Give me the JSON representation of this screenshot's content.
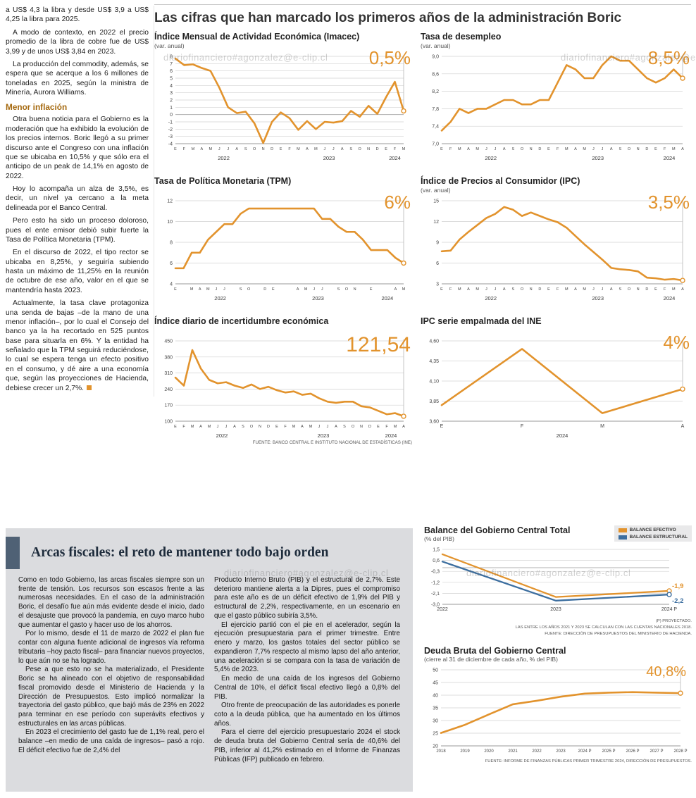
{
  "page": {
    "watermark": "diariofinanciero#agonzalez@e-clip.cl"
  },
  "left_column": {
    "intro": [
      "a US$ 4,3 la libra y desde US$ 3,9 a US$ 4,25 la libra para 2025.",
      "A modo de contexto, en 2022 el precio promedio de la libra de cobre fue de US$ 3,99 y de unos US$ 3,84 en 2023.",
      "La producción del commodity, además, se espera que se acerque a los 6 millones de toneladas en 2025, según la ministra de Minería, Aurora Williams."
    ],
    "subhead": "Menor inflación",
    "body": [
      "Otra buena noticia para el Gobierno es la moderación que ha exhibido la evolución de los precios internos. Boric llegó a su primer discurso ante el Congreso con una inflación que se ubicaba en 10,5% y que sólo era el anticipo de un peak de 14,1% en agosto de 2022.",
      "Hoy lo acompaña un alza de 3,5%, es decir, un nivel ya cercano a la meta delineada por el Banco Central.",
      "Pero esto ha sido un proceso doloroso, pues el ente emisor debió subir fuerte la Tasa de Política Monetaria (TPM).",
      "En el discurso de 2022, el tipo rector se ubicaba en 8,25%, y seguiría subiendo hasta un máximo de 11,25% en la reunión de octubre de ese año, valor en el que se mantendría hasta 2023.",
      "Actualmente, la tasa clave protagoniza una senda de bajas –de la mano de una menor inflación–, por lo cual el Consejo del banco ya la ha recortado en 525 puntos base para situarla en 6%. Y la entidad ha señalado que la TPM seguirá reduciéndose, lo cual se espera tenga un efecto positivo en el consumo, y dé aire a una economía que, según las proyecciones de Hacienda, debiese crecer un 2,7%."
    ]
  },
  "main": {
    "title": "Las cifras que han marcado los primeros años de la administración Boric"
  },
  "bottom": {
    "title": "Arcas fiscales: el reto de mantener todo bajo orden",
    "col1": [
      "Como en todo Gobierno, las arcas fiscales siempre son un frente de tensión. Los recursos son escasos frente a las numerosas necesidades. En el caso de la administración Boric, el desafío fue aún más evidente desde el inicio, dado el desajuste que provocó la pandemia, en cuyo marco hubo que aumentar el gasto y hacer uso de los ahorros.",
      "Por lo mismo, desde el 11 de marzo de 2022 el plan fue contar con alguna fuente adicional de ingresos vía reforma tributaria –hoy pacto fiscal– para financiar nuevos proyectos, lo que aún no se ha logrado.",
      "Pese a que esto no se ha materializado, el Presidente Boric se ha alineado con el objetivo de responsabilidad fiscal promovido desde el Ministerio de Hacienda y la Dirección de Presupuestos. Esto implicó normalizar la trayectoria del gasto público, que bajó más de 23% en 2022 para terminar en ese período con superávits efectivos y estructurales en las arcas públicas.",
      "En 2023 el crecimiento del gasto fue de 1,1% real, pero el balance –en medio de una caída de ingresos– pasó a rojo. El déficit efectivo fue de 2,4% del"
    ],
    "col2": [
      "Producto Interno Bruto (PIB) y el estructural de 2,7%. Este deterioro mantiene alerta a la Dipres, pues el compromiso para este año es de un déficit efectivo de 1,9% del PIB y estructural de 2,2%, respectivamente, en un escenario en que el gasto público subiría 3,5%.",
      "El ejercicio partió con el pie en el acelerador, según la ejecución presupuestaria para el primer trimestre. Entre enero y marzo, los gastos totales del sector público se expandieron 7,7% respecto al mismo lapso del año anterior, una aceleración si se compara con la tasa de variación de 5,4% de 2023.",
      "En medio de una caída de los ingresos del Gobierno Central de 10%, el déficit fiscal efectivo llegó a 0,8% del PIB.",
      "Otro frente de preocupación de las autoridades es ponerle coto a la deuda pública, que ha aumentado en los últimos años.",
      "Para el cierre del ejercicio presupuestario 2024 el stock de deuda bruta del Gobierno Central sería de 40,6% del PIB, inferior al 41,2% estimado en el Informe de Finanzas Públicas (IFP) publicado en febrero."
    ]
  },
  "colors": {
    "orange": "#E2932D",
    "blue": "#3C6E9F"
  },
  "chart_data": [
    {
      "id": "imacec",
      "type": "line",
      "title": "Índice Mensual de Actividad Económica (Imacec)",
      "subtitle": "(var. anual)",
      "big_label": "0,5%",
      "ylim": [
        -4,
        8
      ],
      "y_ticks": [
        8,
        7,
        6,
        5,
        4,
        3,
        2,
        1,
        0,
        -1,
        -2,
        -3,
        -4
      ],
      "x_labels": [
        "E",
        "F",
        "M",
        "A",
        "M",
        "J",
        "J",
        "A",
        "S",
        "O",
        "N",
        "D",
        "E",
        "F",
        "M",
        "A",
        "M",
        "J",
        "J",
        "A",
        "S",
        "O",
        "N",
        "D",
        "E",
        "F",
        "M"
      ],
      "years": [
        {
          "label": "2022",
          "from": 0,
          "to": 11
        },
        {
          "label": "2023",
          "from": 12,
          "to": 23
        },
        {
          "label": "2024",
          "from": 24,
          "to": 26
        }
      ],
      "guide": true,
      "series": [
        {
          "name": "Imacec",
          "color": "#E2932D",
          "end_dot": true,
          "values": [
            7.7,
            6.8,
            6.9,
            6.4,
            6.0,
            3.7,
            1.0,
            0.2,
            0.4,
            -1.2,
            -3.9,
            -1.0,
            0.3,
            -0.5,
            -2.1,
            -0.9,
            -2.0,
            -1.0,
            -1.1,
            -0.9,
            0.5,
            -0.3,
            1.2,
            0.1,
            2.4,
            4.5,
            0.5
          ]
        }
      ]
    },
    {
      "id": "desempleo",
      "type": "line",
      "title": "Tasa de desempleo",
      "subtitle": "(var. anual)",
      "big_label": "8,5%",
      "ylim": [
        7.0,
        9.0
      ],
      "y_ticks": [
        9.0,
        8.6,
        8.2,
        7.8,
        7.4,
        7.0
      ],
      "y_tick_labels": [
        "9,0",
        "8,6",
        "8,2",
        "7,8",
        "7,4",
        "7,0"
      ],
      "x_labels": [
        "E",
        "F",
        "M",
        "A",
        "M",
        "J",
        "J",
        "A",
        "S",
        "O",
        "N",
        "D",
        "E",
        "F",
        "M",
        "A",
        "M",
        "J",
        "J",
        "A",
        "S",
        "O",
        "N",
        "D",
        "E",
        "F",
        "M",
        "A"
      ],
      "years": [
        {
          "label": "2022",
          "from": 0,
          "to": 11
        },
        {
          "label": "2023",
          "from": 12,
          "to": 23
        },
        {
          "label": "2024",
          "from": 24,
          "to": 27
        }
      ],
      "guide": true,
      "series": [
        {
          "name": "Tasa de desempleo",
          "color": "#E2932D",
          "end_dot": true,
          "values": [
            7.3,
            7.5,
            7.8,
            7.7,
            7.8,
            7.8,
            7.9,
            8.0,
            8.0,
            7.9,
            7.9,
            8.0,
            8.0,
            8.4,
            8.8,
            8.7,
            8.5,
            8.5,
            8.8,
            9.0,
            8.9,
            8.9,
            8.7,
            8.5,
            8.4,
            8.5,
            8.7,
            8.5
          ]
        }
      ]
    },
    {
      "id": "tpm",
      "type": "line",
      "title": "Tasa de Política Monetaria (TPM)",
      "subtitle": "",
      "big_label": "6%",
      "ylim": [
        4,
        12
      ],
      "y_ticks": [
        12,
        10,
        8,
        6,
        4
      ],
      "x_labels": [
        "E",
        "",
        "M",
        "A",
        "M",
        "J",
        "J",
        "",
        "S",
        "O",
        "",
        "D",
        "E",
        "",
        "",
        "A",
        "M",
        "J",
        "J",
        "",
        "S",
        "O",
        "N",
        "",
        "E",
        "",
        "",
        "A",
        "M"
      ],
      "years": [
        {
          "label": "2022",
          "from": 0,
          "to": 11
        },
        {
          "label": "2023",
          "from": 12,
          "to": 23
        },
        {
          "label": "2024",
          "from": 24,
          "to": 28
        }
      ],
      "guide": true,
      "series": [
        {
          "name": "TPM",
          "color": "#E2932D",
          "end_dot": true,
          "values": [
            5.5,
            5.5,
            7.0,
            7.0,
            8.25,
            9.0,
            9.75,
            9.75,
            10.75,
            11.25,
            11.25,
            11.25,
            11.25,
            11.25,
            11.25,
            11.25,
            11.25,
            11.25,
            10.25,
            10.25,
            9.5,
            9.0,
            9.0,
            8.25,
            7.25,
            7.25,
            7.25,
            6.5,
            6.0
          ]
        }
      ]
    },
    {
      "id": "ipc",
      "type": "line",
      "title": "Índice de Precios al Consumidor (IPC)",
      "subtitle": "(var. anual)",
      "big_label": "3,5%",
      "ylim": [
        3,
        15
      ],
      "y_ticks": [
        15,
        12,
        9,
        6,
        3
      ],
      "x_labels": [
        "E",
        "F",
        "M",
        "A",
        "M",
        "J",
        "J",
        "A",
        "S",
        "O",
        "N",
        "D",
        "E",
        "F",
        "M",
        "A",
        "M",
        "J",
        "J",
        "A",
        "S",
        "O",
        "N",
        "D",
        "E",
        "F",
        "M",
        "A"
      ],
      "years": [
        {
          "label": "2022",
          "from": 0,
          "to": 11
        },
        {
          "label": "2023",
          "from": 12,
          "to": 23
        },
        {
          "label": "2024",
          "from": 24,
          "to": 27
        }
      ],
      "guide": true,
      "series": [
        {
          "name": "IPC",
          "color": "#E2932D",
          "end_dot": true,
          "values": [
            7.7,
            7.8,
            9.4,
            10.5,
            11.5,
            12.5,
            13.1,
            14.1,
            13.7,
            12.8,
            13.3,
            12.8,
            12.3,
            11.9,
            11.1,
            9.9,
            8.7,
            7.6,
            6.5,
            5.3,
            5.1,
            5.0,
            4.8,
            3.9,
            3.8,
            3.6,
            3.7,
            3.5
          ]
        }
      ]
    },
    {
      "id": "incertidumbre",
      "type": "line",
      "title": "Índice diario de incertidumbre económica",
      "subtitle": "",
      "big_label": "121,54",
      "ylim": [
        100,
        450
      ],
      "y_ticks": [
        450,
        380,
        310,
        240,
        170,
        100
      ],
      "x_labels": [
        "E",
        "F",
        "M",
        "A",
        "M",
        "J",
        "J",
        "A",
        "S",
        "O",
        "N",
        "D",
        "E",
        "F",
        "M",
        "A",
        "M",
        "J",
        "J",
        "A",
        "S",
        "O",
        "N",
        "D",
        "E",
        "F",
        "M",
        "A"
      ],
      "years": [
        {
          "label": "2022",
          "from": 0,
          "to": 11
        },
        {
          "label": "2023",
          "from": 12,
          "to": 23
        },
        {
          "label": "2024",
          "from": 24,
          "to": 27
        }
      ],
      "guide": true,
      "source": "FUENTE: BANCO CENTRAL E INSTITUTO NACIONAL DE ESTADÍSTICAS (INE)",
      "series": [
        {
          "name": "Incertidumbre económica",
          "color": "#E2932D",
          "end_dot": true,
          "values": [
            290,
            255,
            410,
            330,
            280,
            265,
            270,
            255,
            245,
            260,
            240,
            250,
            235,
            225,
            230,
            215,
            220,
            200,
            185,
            180,
            185,
            185,
            165,
            160,
            145,
            130,
            135,
            121.54
          ]
        }
      ]
    },
    {
      "id": "ipc_empalmada",
      "type": "line",
      "title": "IPC serie empalmada del INE",
      "subtitle": "",
      "big_label": "4%",
      "ylim": [
        3.6,
        4.6
      ],
      "y_ticks": [
        4.6,
        4.35,
        4.1,
        3.85,
        3.6
      ],
      "y_tick_labels": [
        "4,60",
        "4,35",
        "4,10",
        "3,85",
        "3,60"
      ],
      "x_labels": [
        "E",
        "F",
        "M",
        "A"
      ],
      "x_label_size": 7,
      "years": [
        {
          "label": "2024",
          "from": 0,
          "to": 3
        }
      ],
      "guide": true,
      "series": [
        {
          "name": "IPC serie empalmada",
          "color": "#E2932D",
          "end_dot": true,
          "values": [
            3.8,
            4.5,
            3.7,
            4.0
          ]
        }
      ]
    },
    {
      "id": "balance",
      "type": "line",
      "title": "Balance del Gobierno Central Total",
      "subtitle": "(% del PIB)",
      "ylim": [
        -3.0,
        1.5
      ],
      "y_ticks": [
        1.5,
        0.6,
        -0.3,
        -1.2,
        -2.1,
        -3.0
      ],
      "y_tick_labels": [
        "1,5",
        "0,6",
        "-0,3",
        "-1,2",
        "-2,1",
        "-3,0"
      ],
      "x_labels": [
        "2022",
        "2023",
        "2024 P"
      ],
      "x_label_size": 7,
      "ml": 26,
      "mr": 32,
      "mb": 18,
      "footnotes": [
        "(P) PROYECTADO.",
        "LAS ENTRE LOS AÑOS 2021 Y 2023 SE CALCULAN CON LAS CUENTAS NACIONALES 2018.",
        "FUENTE: DIRECCIÓN DE PRESUPUESTOS DEL MINISTERIO DE HACIENDA."
      ],
      "series": [
        {
          "name": "BALANCE EFECTIVO",
          "color": "#E2932D",
          "width": 2.3,
          "end_dot": true,
          "end_label": "-1,9",
          "values": [
            1.1,
            -2.4,
            -1.9
          ]
        },
        {
          "name": "BALANCE ESTRUCTURAL",
          "color": "#3C6E9F",
          "width": 2.3,
          "end_dot": true,
          "end_label": "-2,2",
          "values": [
            0.5,
            -2.7,
            -2.2
          ]
        }
      ]
    },
    {
      "id": "deuda",
      "type": "line",
      "title": "Deuda Bruta del Gobierno Central",
      "subtitle": "(cierre al 31 de diciembre de cada año, % del PIB)",
      "big_label": "40,8%",
      "ylim": [
        20,
        50
      ],
      "y_ticks": [
        50,
        45,
        40,
        35,
        30,
        25,
        20
      ],
      "x_labels": [
        "2018",
        "2019",
        "2020",
        "2021",
        "2022",
        "2023",
        "2024 P",
        "2025 P",
        "2026 P",
        "2027 P",
        "2028 P"
      ],
      "x_label_size": 6,
      "ml": 24,
      "mr": 16,
      "mb": 16,
      "guide": true,
      "source": "FUENTE: INFORME DE FINANZAS PÚBLICAS PRIMER TRIMESTRE 2024, DIRECCIÓN DE PRESUPUESTOS.",
      "series": [
        {
          "name": "Deuda bruta",
          "color": "#E2932D",
          "end_dot": true,
          "values": [
            25.1,
            28.3,
            32.4,
            36.4,
            37.8,
            39.4,
            40.6,
            41.0,
            41.2,
            41.0,
            40.8
          ]
        }
      ]
    }
  ]
}
